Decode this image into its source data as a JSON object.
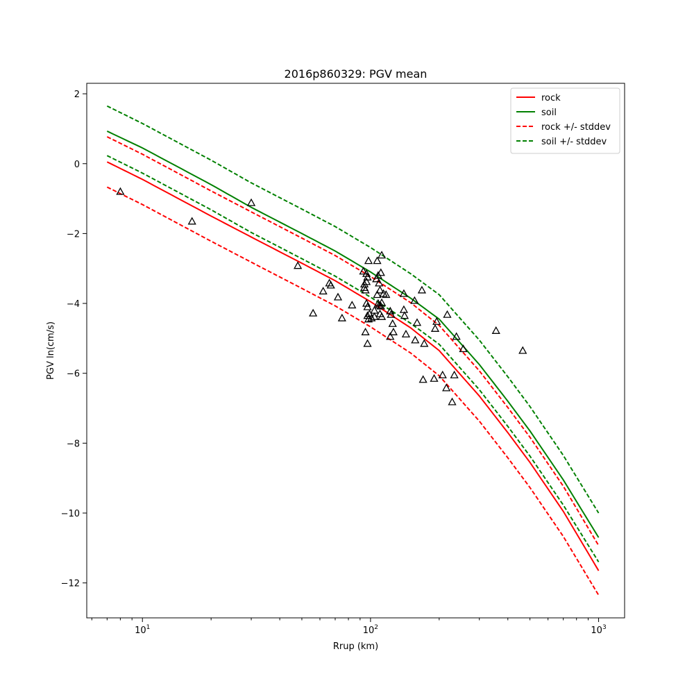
{
  "chart_data": {
    "type": "line",
    "title": "2016p860329: PGV mean",
    "xlabel": "Rrup (km)",
    "ylabel": "PGV ln(cm/s)",
    "xscale": "log",
    "xlim": [
      5.7,
      1300
    ],
    "ylim": [
      -13,
      2.3
    ],
    "x_ticks": [
      {
        "value": 10,
        "base": "10",
        "exp": "1"
      },
      {
        "value": 100,
        "base": "10",
        "exp": "2"
      },
      {
        "value": 1000,
        "base": "10",
        "exp": "3"
      }
    ],
    "y_ticks": [
      {
        "value": 2,
        "label": "2"
      },
      {
        "value": 0,
        "label": "0"
      },
      {
        "value": -2,
        "label": "−2"
      },
      {
        "value": -4,
        "label": "−4"
      },
      {
        "value": -6,
        "label": "−6"
      },
      {
        "value": -8,
        "label": "−8"
      },
      {
        "value": -10,
        "label": "−10"
      },
      {
        "value": -12,
        "label": "−12"
      }
    ],
    "grid": false,
    "legend_position": "top-right",
    "series": [
      {
        "name": "rock",
        "color": "#ff0000",
        "style": "solid",
        "x": [
          7,
          10,
          20,
          30,
          50,
          70,
          100,
          150,
          200,
          300,
          400,
          500,
          700,
          1000
        ],
        "y": [
          0.05,
          -0.45,
          -1.5,
          -2.1,
          -2.85,
          -3.35,
          -3.95,
          -4.7,
          -5.35,
          -6.65,
          -7.7,
          -8.55,
          -9.95,
          -11.65
        ]
      },
      {
        "name": "soil",
        "color": "#008000",
        "style": "solid",
        "x": [
          7,
          10,
          20,
          30,
          50,
          70,
          100,
          150,
          200,
          300,
          400,
          500,
          700,
          1000
        ],
        "y": [
          0.93,
          0.45,
          -0.6,
          -1.25,
          -2.0,
          -2.5,
          -3.1,
          -3.85,
          -4.45,
          -5.75,
          -6.8,
          -7.65,
          -9.05,
          -10.7
        ]
      },
      {
        "name": "rock +/- stddev",
        "color": "#ff0000",
        "style": "dashed",
        "x": [
          7,
          10,
          20,
          30,
          50,
          70,
          100,
          150,
          200,
          300,
          400,
          500,
          700,
          1000
        ],
        "y": [
          0.77,
          0.27,
          -0.78,
          -1.38,
          -2.13,
          -2.63,
          -3.23,
          -3.98,
          -4.63,
          -5.93,
          -6.98,
          -7.83,
          -9.23,
          -10.93
        ]
      },
      {
        "name": "rock +/- stddev (lower)",
        "color": "#ff0000",
        "style": "dashed",
        "x": [
          7,
          10,
          20,
          30,
          50,
          70,
          100,
          150,
          200,
          300,
          400,
          500,
          700,
          1000
        ],
        "y": [
          -0.67,
          -1.17,
          -2.22,
          -2.82,
          -3.57,
          -4.07,
          -4.67,
          -5.42,
          -6.07,
          -7.37,
          -8.42,
          -9.27,
          -10.67,
          -12.35
        ]
      },
      {
        "name": "soil +/- stddev",
        "color": "#008000",
        "style": "dashed",
        "x": [
          7,
          10,
          20,
          30,
          50,
          70,
          100,
          150,
          200,
          300,
          400,
          500,
          700,
          1000
        ],
        "y": [
          1.65,
          1.15,
          0.1,
          -0.55,
          -1.3,
          -1.8,
          -2.4,
          -3.15,
          -3.75,
          -5.05,
          -6.1,
          -6.95,
          -8.35,
          -10.0
        ]
      },
      {
        "name": "soil +/- stddev (lower)",
        "color": "#008000",
        "style": "dashed",
        "x": [
          7,
          10,
          20,
          30,
          50,
          70,
          100,
          150,
          200,
          300,
          400,
          500,
          700,
          1000
        ],
        "y": [
          0.23,
          -0.27,
          -1.32,
          -1.97,
          -2.72,
          -3.22,
          -3.82,
          -4.57,
          -5.17,
          -6.47,
          -7.52,
          -8.37,
          -9.77,
          -11.4
        ]
      }
    ],
    "observations": {
      "marker": "triangle",
      "color": "#000000",
      "x": [
        8,
        16.5,
        30,
        48,
        56,
        62,
        66,
        67,
        72,
        75,
        83,
        93,
        94,
        94,
        95,
        95,
        96,
        96,
        96,
        97,
        97,
        97,
        97,
        98,
        98,
        99,
        101,
        104,
        104,
        106,
        107,
        107,
        108,
        108,
        109,
        109,
        110,
        110,
        111,
        111,
        112,
        112,
        112,
        114,
        117,
        122,
        122,
        123,
        125,
        126,
        140,
        140,
        141,
        143,
        156,
        157,
        160,
        168,
        170,
        172,
        190,
        192,
        195,
        207,
        215,
        217,
        228,
        233,
        238,
        255,
        355,
        465
      ],
      "y": [
        -0.8,
        -1.65,
        -1.12,
        -2.92,
        -4.28,
        -3.65,
        -3.42,
        -3.48,
        -3.82,
        -4.42,
        -4.05,
        -3.08,
        -3.45,
        -3.55,
        -3.62,
        -4.82,
        -3.15,
        -3.38,
        -4.0,
        -3.25,
        -4.1,
        -4.35,
        -5.15,
        -2.78,
        -4.45,
        -4.3,
        -4.42,
        -4.2,
        -4.38,
        -3.3,
        -2.78,
        -3.75,
        -3.2,
        -4.0,
        -3.42,
        -4.05,
        -3.62,
        -4.3,
        -3.12,
        -4.08,
        -2.62,
        -3.98,
        -4.38,
        -3.72,
        -3.75,
        -4.22,
        -4.95,
        -4.32,
        -4.58,
        -4.82,
        -3.72,
        -4.18,
        -4.35,
        -4.88,
        -3.92,
        -5.05,
        -4.55,
        -3.62,
        -6.18,
        -5.15,
        -6.15,
        -4.72,
        -4.52,
        -6.05,
        -6.42,
        -4.32,
        -6.82,
        -6.05,
        -4.95,
        -5.3,
        -4.78,
        -5.35
      ]
    }
  }
}
